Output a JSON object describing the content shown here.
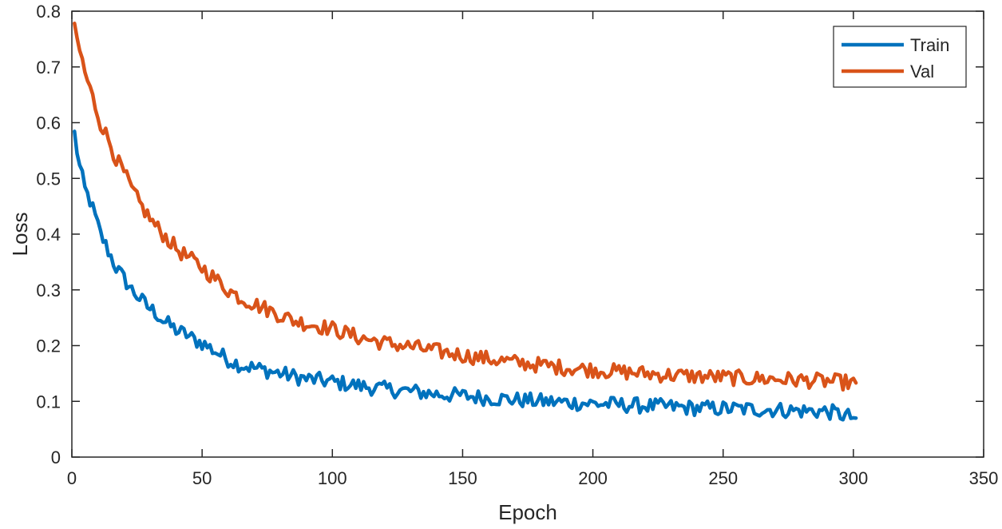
{
  "chart_data": {
    "type": "line",
    "title": "",
    "xlabel": "Epoch",
    "ylabel": "Loss",
    "xlim": [
      0,
      350
    ],
    "ylim": [
      0,
      0.8
    ],
    "xticks": [
      0,
      50,
      100,
      150,
      200,
      250,
      300,
      350
    ],
    "yticks": [
      0,
      0.1,
      0.2,
      0.3,
      0.4,
      0.5,
      0.6,
      0.7,
      0.8
    ],
    "grid": false,
    "legend": "top-right",
    "series": [
      {
        "name": "Train",
        "color": "#0072BD",
        "x": [
          1,
          3,
          5,
          7,
          9,
          11,
          13,
          15,
          17,
          20,
          23,
          26,
          29,
          32,
          35,
          38,
          41,
          44,
          47,
          50,
          55,
          60,
          65,
          70,
          75,
          80,
          85,
          90,
          95,
          100,
          110,
          120,
          130,
          140,
          150,
          160,
          170,
          180,
          190,
          200,
          210,
          220,
          230,
          240,
          250,
          260,
          270,
          280,
          290,
          301
        ],
        "y": [
          0.58,
          0.52,
          0.48,
          0.46,
          0.43,
          0.4,
          0.38,
          0.36,
          0.34,
          0.32,
          0.3,
          0.285,
          0.27,
          0.26,
          0.245,
          0.235,
          0.225,
          0.22,
          0.21,
          0.205,
          0.19,
          0.175,
          0.165,
          0.16,
          0.155,
          0.15,
          0.145,
          0.14,
          0.138,
          0.135,
          0.128,
          0.122,
          0.118,
          0.113,
          0.11,
          0.106,
          0.103,
          0.1,
          0.098,
          0.096,
          0.094,
          0.092,
          0.09,
          0.088,
          0.087,
          0.086,
          0.085,
          0.083,
          0.082,
          0.07
        ]
      },
      {
        "name": "Val",
        "color": "#D95319",
        "x": [
          1,
          3,
          5,
          7,
          9,
          11,
          13,
          15,
          17,
          20,
          23,
          26,
          29,
          32,
          35,
          38,
          41,
          44,
          47,
          50,
          55,
          60,
          65,
          70,
          75,
          80,
          85,
          90,
          95,
          100,
          110,
          120,
          130,
          140,
          150,
          160,
          170,
          180,
          190,
          200,
          210,
          220,
          230,
          240,
          250,
          260,
          270,
          280,
          290,
          301
        ],
        "y": [
          0.765,
          0.73,
          0.69,
          0.66,
          0.63,
          0.6,
          0.58,
          0.56,
          0.535,
          0.51,
          0.48,
          0.455,
          0.435,
          0.415,
          0.4,
          0.385,
          0.37,
          0.36,
          0.35,
          0.34,
          0.32,
          0.3,
          0.285,
          0.275,
          0.265,
          0.255,
          0.245,
          0.24,
          0.235,
          0.23,
          0.215,
          0.205,
          0.198,
          0.19,
          0.183,
          0.176,
          0.17,
          0.165,
          0.16,
          0.157,
          0.153,
          0.15,
          0.147,
          0.145,
          0.143,
          0.141,
          0.14,
          0.138,
          0.136,
          0.133
        ]
      }
    ]
  }
}
